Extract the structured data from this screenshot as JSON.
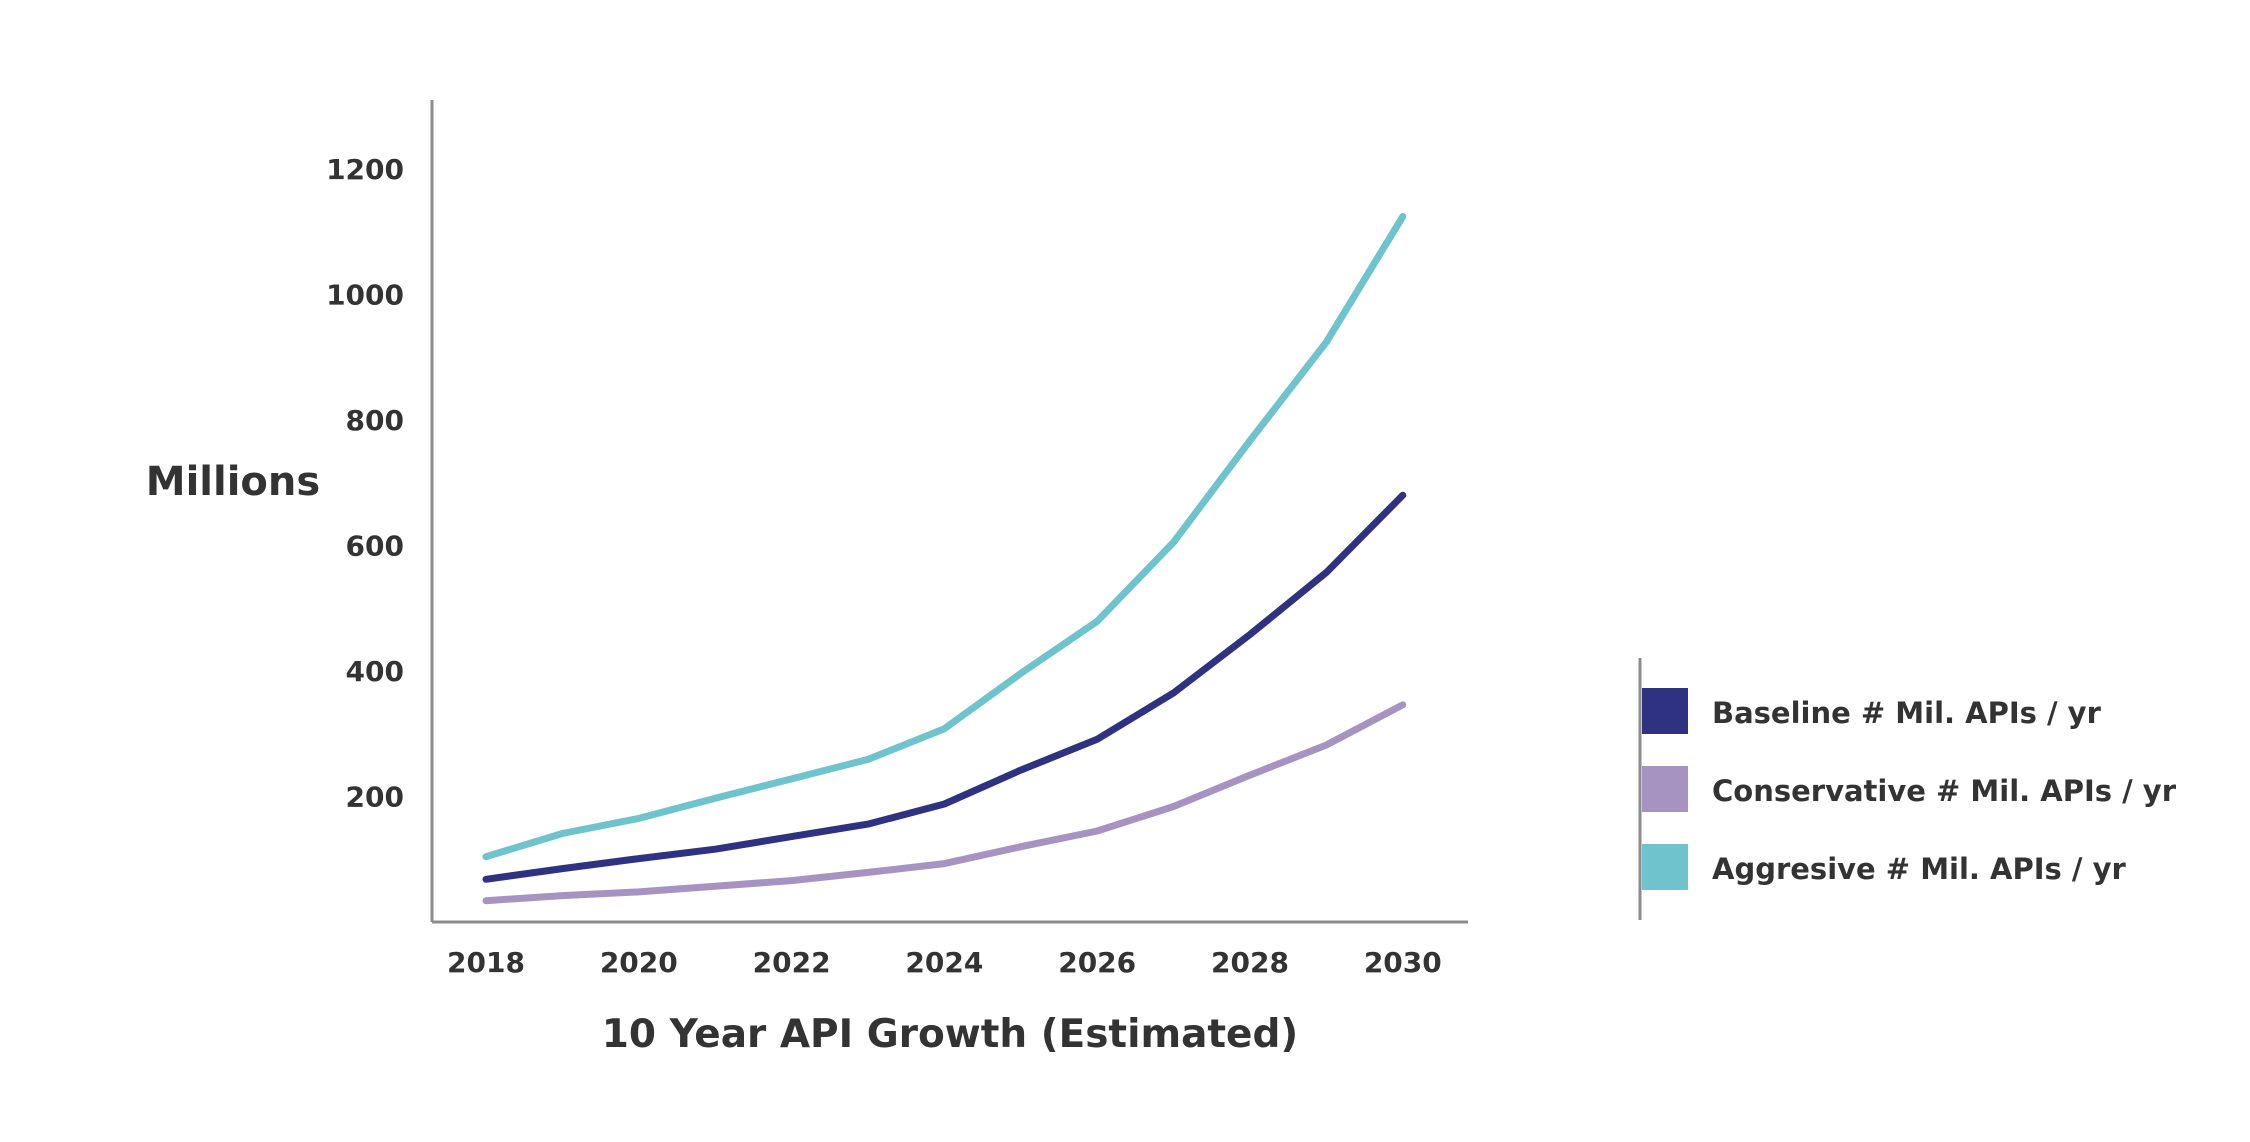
{
  "chart_data": {
    "type": "line",
    "title": "",
    "xlabel": "10 Year API Growth (Estimated)",
    "ylabel": "Millions",
    "x": [
      2018,
      2019,
      2020,
      2021,
      2022,
      2023,
      2024,
      2025,
      2026,
      2027,
      2028,
      2029,
      2030
    ],
    "xticks": [
      2018,
      2020,
      2022,
      2024,
      2026,
      2028,
      2030
    ],
    "yticks": [
      200,
      400,
      600,
      800,
      1000,
      1200
    ],
    "xlim": [
      2017.4,
      2030.9
    ],
    "ylim": [
      0,
      1310
    ],
    "grid": false,
    "legend_position": "right",
    "series": [
      {
        "name": "Baseline # Mil. APIs / yr",
        "color": "#2e3280",
        "values": [
          68,
          85,
          101,
          116,
          136,
          156,
          188,
          242,
          291,
          365,
          458,
          557,
          680
        ]
      },
      {
        "name": "Conservative # Mil. APIs / yr",
        "color": "#a693c1",
        "values": [
          34,
          42,
          48,
          57,
          66,
          79,
          93,
          120,
          145,
          184,
          234,
          282,
          346
        ]
      },
      {
        "name": "Aggresive # Mil. APIs / yr",
        "color": "#6ec3cd",
        "values": [
          104,
          141,
          165,
          197,
          228,
          259,
          308,
          396,
          479,
          605,
          767,
          924,
          1124
        ]
      }
    ]
  }
}
